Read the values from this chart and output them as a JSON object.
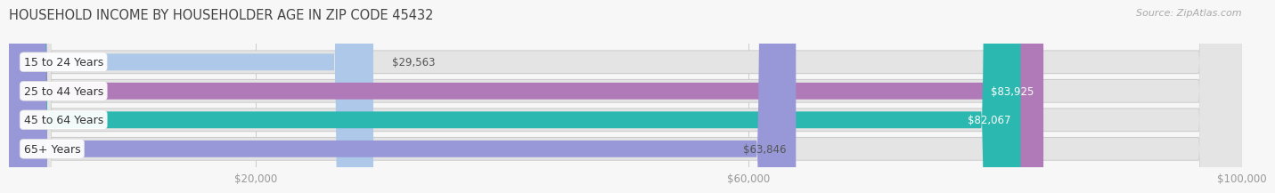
{
  "title": "HOUSEHOLD INCOME BY HOUSEHOLDER AGE IN ZIP CODE 45432",
  "source": "Source: ZipAtlas.com",
  "categories": [
    "15 to 24 Years",
    "25 to 44 Years",
    "45 to 64 Years",
    "65+ Years"
  ],
  "values": [
    29563,
    83925,
    82067,
    63846
  ],
  "bar_colors": [
    "#adc8e8",
    "#b07ab8",
    "#2ab8b0",
    "#9898d8"
  ],
  "label_colors": [
    "#555555",
    "#ffffff",
    "#ffffff",
    "#555555"
  ],
  "xmax": 100000,
  "xmin": 0,
  "xticks": [
    20000,
    60000,
    100000
  ],
  "xtick_labels": [
    "$20,000",
    "$60,000",
    "$100,000"
  ],
  "bg_color": "#f7f7f7",
  "bar_bg_color": "#e4e4e4",
  "bar_bg_outline": "#d8d8d8",
  "title_fontsize": 10.5,
  "source_fontsize": 8,
  "label_fontsize": 8.5,
  "category_fontsize": 9
}
